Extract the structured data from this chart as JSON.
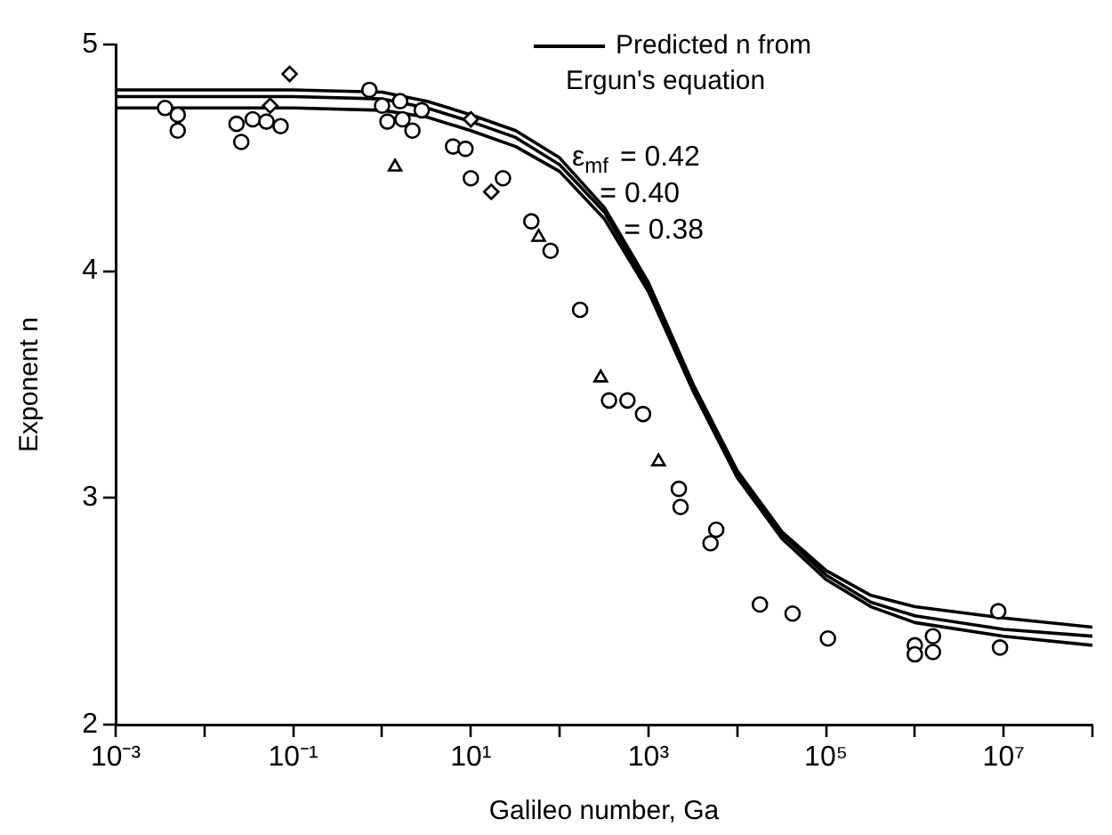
{
  "chart_data": {
    "type": "scatter",
    "xlabel": "Galileo number, Ga",
    "ylabel": "Exponent n",
    "legend_title": "Predicted n from Ergun's equation",
    "legend": "top right",
    "log": "x",
    "grid": false,
    "xlim": [
      0.001,
      100000000
    ],
    "xticks": [
      {
        "value": 0.001,
        "label": "10⁻³"
      },
      {
        "value": 0.01,
        "label": null
      },
      {
        "value": 0.1,
        "label": "10⁻¹"
      },
      {
        "value": 1,
        "label": null
      },
      {
        "value": 10,
        "label": "10¹"
      },
      {
        "value": 100,
        "label": null
      },
      {
        "value": 1000,
        "label": "10³"
      },
      {
        "value": 10000,
        "label": null
      },
      {
        "value": 100000,
        "label": "10⁵"
      },
      {
        "value": 1000000,
        "label": null
      },
      {
        "value": 10000000,
        "label": "10⁷"
      },
      {
        "value": 100000000,
        "label": null
      }
    ],
    "ylim": [
      2,
      5
    ],
    "yticks": [
      2,
      3,
      4,
      5
    ],
    "series": [
      {
        "name": "ε$_{mf}$ = 0.42",
        "type": "line",
        "color": "#000000",
        "marker": "none",
        "line_style": "solid",
        "x": [
          0.001,
          0.1,
          1,
          3.2,
          10,
          32,
          100,
          320,
          1000,
          3200,
          10000,
          32000,
          100000,
          320000,
          1000000,
          10000000,
          100000000
        ],
        "values": [
          4.8,
          4.8,
          4.79,
          4.75,
          4.69,
          4.62,
          4.5,
          4.28,
          3.95,
          3.5,
          3.12,
          2.85,
          2.68,
          2.57,
          2.52,
          2.47,
          2.43
        ]
      },
      {
        "name": "= 0.40",
        "type": "line",
        "color": "#000000",
        "marker": "none",
        "line_style": "solid",
        "x": [
          0.001,
          0.1,
          1,
          3.2,
          10,
          32,
          100,
          320,
          1000,
          3200,
          10000,
          32000,
          100000,
          320000,
          1000000,
          10000000,
          100000000
        ],
        "values": [
          4.77,
          4.77,
          4.76,
          4.72,
          4.66,
          4.59,
          4.47,
          4.26,
          3.93,
          3.49,
          3.11,
          2.84,
          2.66,
          2.54,
          2.48,
          2.42,
          2.39
        ]
      },
      {
        "name": "= 0.38",
        "type": "line",
        "color": "#000000",
        "marker": "none",
        "line_style": "solid",
        "x": [
          0.001,
          0.1,
          1,
          3.2,
          10,
          32,
          100,
          320,
          1000,
          3200,
          10000,
          32000,
          100000,
          320000,
          1000000,
          10000000,
          100000000
        ],
        "values": [
          4.72,
          4.72,
          4.71,
          4.68,
          4.62,
          4.55,
          4.44,
          4.23,
          3.91,
          3.47,
          3.09,
          2.82,
          2.64,
          2.52,
          2.45,
          2.39,
          2.35
        ]
      },
      {
        "type": "scatter",
        "color": "#000000",
        "marker": "circle",
        "x": [
          0.0036,
          0.005,
          0.005,
          0.023,
          0.026,
          0.035,
          0.05,
          0.072,
          1.0,
          1.15,
          1.7,
          2.2,
          2.8,
          0.72,
          1.6,
          6.3,
          8.7,
          10,
          23,
          48,
          79,
          170,
          360,
          580,
          870,
          2200,
          2300,
          5000,
          5800,
          18000,
          42000,
          105000,
          1000000,
          1600000,
          1000000,
          1600000,
          8700000,
          9100000
        ],
        "values": [
          4.72,
          4.69,
          4.62,
          4.65,
          4.57,
          4.67,
          4.66,
          4.64,
          4.73,
          4.66,
          4.67,
          4.62,
          4.71,
          4.8,
          4.75,
          4.55,
          4.54,
          4.41,
          4.41,
          4.22,
          4.09,
          3.83,
          3.43,
          3.43,
          3.37,
          3.04,
          2.96,
          2.8,
          2.86,
          2.53,
          2.49,
          2.38,
          2.35,
          2.39,
          2.31,
          2.32,
          2.5,
          2.34
        ]
      },
      {
        "type": "scatter",
        "color": "#000000",
        "marker": "diamond",
        "x": [
          0.055,
          0.091,
          17,
          10
        ],
        "values": [
          4.73,
          4.87,
          4.35,
          4.67
        ]
      },
      {
        "type": "scatter",
        "color": "#000000",
        "marker": "triangle",
        "x": [
          1.4,
          58,
          290,
          1300
        ],
        "values": [
          4.46,
          4.15,
          3.53,
          3.16
        ]
      }
    ]
  }
}
